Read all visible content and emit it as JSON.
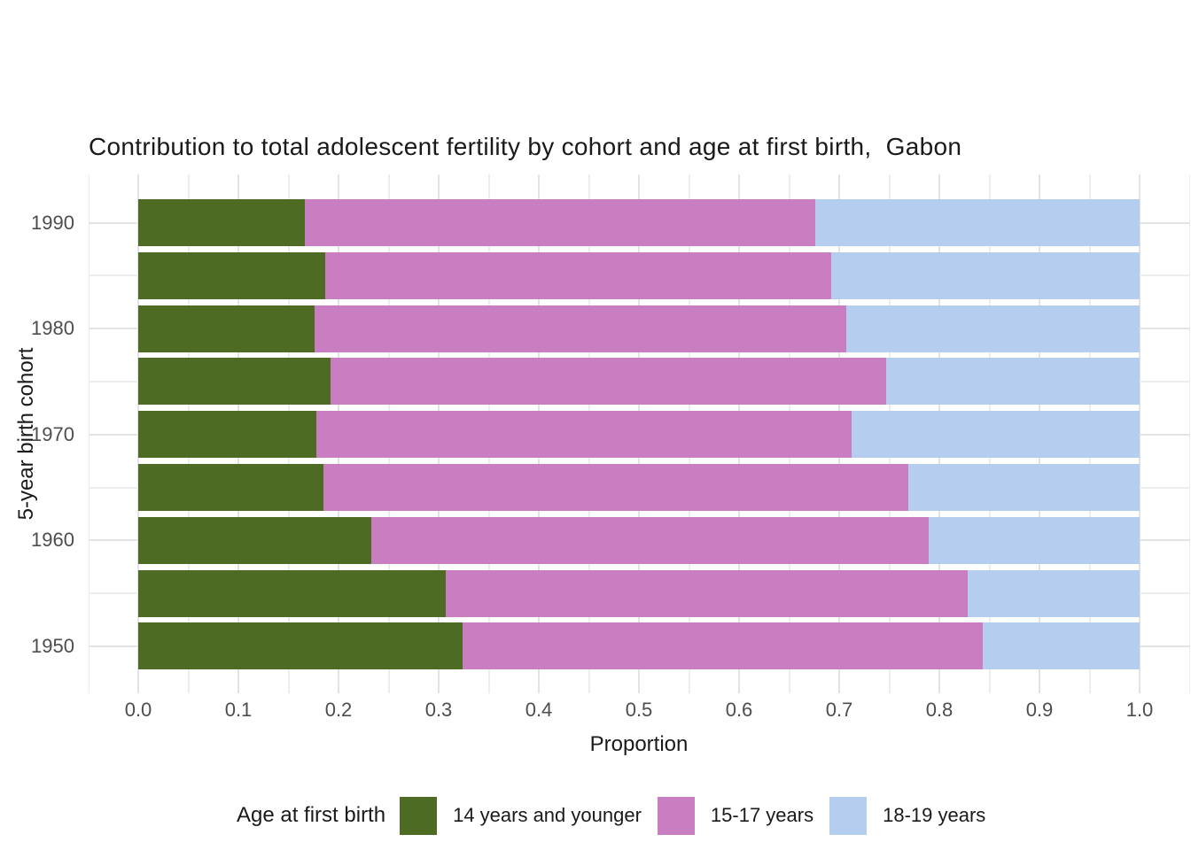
{
  "title": "Contribution to total adolescent fertility by cohort and age at first birth,  Gabon",
  "y_axis": {
    "title": "5-year birth cohort",
    "tick_labels": [
      "1990",
      "1980",
      "1970",
      "1960",
      "1950"
    ]
  },
  "x_axis": {
    "title": "Proportion",
    "tick_labels": [
      "0.0",
      "0.1",
      "0.2",
      "0.3",
      "0.4",
      "0.5",
      "0.6",
      "0.7",
      "0.8",
      "0.9",
      "1.0"
    ]
  },
  "legend": {
    "title": "Age at first birth",
    "items": [
      {
        "label": "14 years and younger",
        "color": "#4d6b23"
      },
      {
        "label": "15-17 years",
        "color": "#c87ec0"
      },
      {
        "label": "18-19 years",
        "color": "#b5cdee"
      }
    ]
  },
  "colors": {
    "background": "#ffffff",
    "grid_major": "#e3e3e3",
    "grid_minor": "#ededed",
    "tick_label": "#4d4d4d",
    "text": "#1a1a1a"
  },
  "chart_data": {
    "type": "bar",
    "stacked": true,
    "orientation": "horizontal",
    "title": "Contribution to total adolescent fertility by cohort and age at first birth,  Gabon",
    "xlabel": "Proportion",
    "ylabel": "5-year birth cohort",
    "xlim": [
      0,
      1
    ],
    "grid": true,
    "legend_position": "bottom",
    "category_order": "top-to-bottom",
    "categories": [
      "1990",
      "1985",
      "1980",
      "1975",
      "1970",
      "1965",
      "1960",
      "1955",
      "1950"
    ],
    "labeled_categories": [
      "1990",
      "1980",
      "1970",
      "1960",
      "1950"
    ],
    "series": [
      {
        "name": "14 years and younger",
        "color": "#4d6b23",
        "values": [
          0.166,
          0.187,
          0.176,
          0.192,
          0.178,
          0.185,
          0.233,
          0.307,
          0.324
        ]
      },
      {
        "name": "15-17 years",
        "color": "#c87ec0",
        "values": [
          0.51,
          0.505,
          0.531,
          0.555,
          0.534,
          0.584,
          0.556,
          0.521,
          0.519
        ]
      },
      {
        "name": "18-19 years",
        "color": "#b5cdee",
        "values": [
          0.324,
          0.308,
          0.293,
          0.253,
          0.288,
          0.231,
          0.211,
          0.172,
          0.157
        ]
      }
    ]
  }
}
